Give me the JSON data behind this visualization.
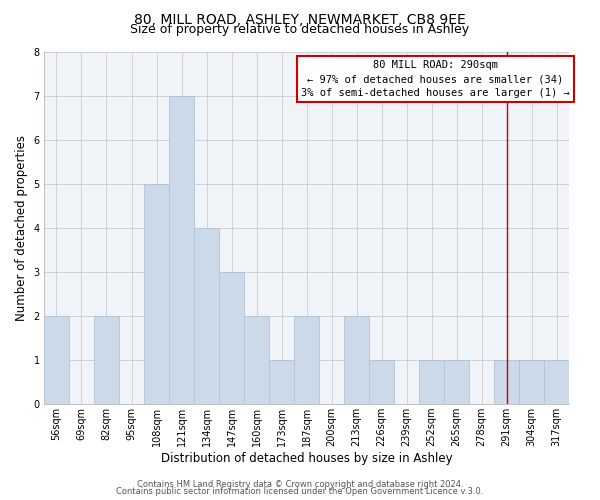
{
  "title": "80, MILL ROAD, ASHLEY, NEWMARKET, CB8 9EE",
  "subtitle": "Size of property relative to detached houses in Ashley",
  "xlabel": "Distribution of detached houses by size in Ashley",
  "ylabel": "Number of detached properties",
  "bin_labels": [
    "56sqm",
    "69sqm",
    "82sqm",
    "95sqm",
    "108sqm",
    "121sqm",
    "134sqm",
    "147sqm",
    "160sqm",
    "173sqm",
    "187sqm",
    "200sqm",
    "213sqm",
    "226sqm",
    "239sqm",
    "252sqm",
    "265sqm",
    "278sqm",
    "291sqm",
    "304sqm",
    "317sqm"
  ],
  "bar_heights": [
    2,
    0,
    2,
    0,
    5,
    7,
    4,
    3,
    2,
    1,
    2,
    0,
    2,
    1,
    0,
    1,
    1,
    0,
    1,
    1,
    1
  ],
  "bar_color": "#ccd9e8",
  "bar_edge_color": "#b0c4d8",
  "grid_color": "#cccccc",
  "vline_x_index": 18,
  "vline_color": "#cc0000",
  "ann_text_line1": "80 MILL ROAD: 290sqm",
  "ann_text_line2": "← 97% of detached houses are smaller (34)",
  "ann_text_line3": "3% of semi-detached houses are larger (1) →",
  "annotation_box_facecolor": "#ffffff",
  "annotation_box_edgecolor": "#cc0000",
  "ylim": [
    0,
    8
  ],
  "yticks": [
    0,
    1,
    2,
    3,
    4,
    5,
    6,
    7,
    8
  ],
  "footer_line1": "Contains HM Land Registry data © Crown copyright and database right 2024.",
  "footer_line2": "Contains public sector information licensed under the Open Government Licence v.3.0.",
  "title_fontsize": 10,
  "subtitle_fontsize": 9,
  "axis_label_fontsize": 8.5,
  "tick_fontsize": 7,
  "footer_fontsize": 6,
  "annotation_fontsize": 7.5
}
